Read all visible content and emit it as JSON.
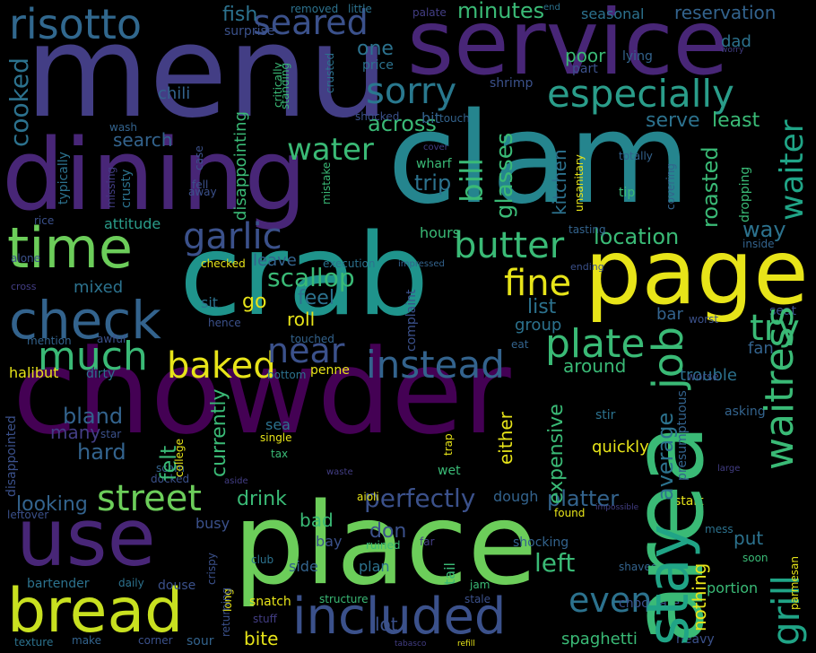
{
  "palette": {
    "background": "#000000",
    "yellow": "#e7e419",
    "lime": "#a2da37",
    "green": "#6ccd5a",
    "teal_green": "#3aba76",
    "sea": "#20a486",
    "teal": "#1f948c",
    "blue_teal": "#29788e",
    "steel": "#33638d",
    "slate": "#3b518b",
    "indigo": "#433e85",
    "violet": "#482677",
    "purple": "#440154"
  },
  "words": [
    "chowder",
    "clam",
    "menu",
    "service",
    "crab",
    "dining",
    "place",
    "area",
    "page",
    "use",
    "time",
    "bread",
    "included",
    "check",
    "especially",
    "risotto",
    "stay",
    "waitress",
    "grill",
    "job",
    "water",
    "seared",
    "sorry",
    "street",
    "plate",
    "waiter",
    "butter",
    "instead",
    "much",
    "baked",
    "garlic",
    "fine",
    "near",
    "even",
    "perfectly",
    "try",
    "fish",
    "cooked",
    "bland",
    "left",
    "minutes",
    "bill",
    "glasses",
    "scallop",
    "kitchen",
    "roasted",
    "location",
    "hours",
    "trip",
    "way",
    "serve",
    "least",
    "across",
    "seasonal",
    "reservation",
    "chili",
    "search",
    "attitude",
    "mixed",
    "list",
    "feel",
    "roll",
    "bar",
    "group",
    "drink",
    "don",
    "platter",
    "dough",
    "around",
    "trouble",
    "average",
    "expensive",
    "fan",
    "currently",
    "felt",
    "looking",
    "hard",
    "many",
    "bad",
    "bay",
    "side",
    "plan",
    "quickly",
    "either",
    "nothing",
    "portion",
    "spaghetti",
    "lot",
    "bite",
    "put",
    "go",
    "sit",
    "leave",
    "poor",
    "dad",
    "one",
    "price",
    "shrimp",
    "part",
    "lying",
    "standing",
    "crusted",
    "surprise",
    "removed",
    "little",
    "palate",
    "end",
    "worry",
    "critically",
    "disappointing",
    "typically",
    "missing",
    "crusty",
    "mistake",
    "case",
    "fell",
    "away",
    "wash",
    "rice",
    "alone",
    "cross",
    "mention",
    "awful",
    "touched",
    "halibut",
    "dirty",
    "execution",
    "checked",
    "hence",
    "complaint",
    "impressed",
    "ending",
    "tasting",
    "inside",
    "seat",
    "worst",
    "worse",
    "asking",
    "stir",
    "presumptuous",
    "unsanitary",
    "cover",
    "totally",
    "tip",
    "covering",
    "dropping",
    "wharf",
    "shocked",
    "touch",
    "bit",
    "penne",
    "bottom",
    "eat",
    "sea",
    "single",
    "tax",
    "star",
    "college",
    "scam",
    "docked",
    "aside",
    "waste",
    "wet",
    "trap",
    "tail",
    "large",
    "start",
    "mess",
    "soon",
    "shocking",
    "found",
    "impossible",
    "aioli",
    "ruined",
    "far",
    "busy",
    "crispy",
    "long",
    "club",
    "leftover",
    "disappointed",
    "bartender",
    "daily",
    "douse",
    "returning",
    "snatch",
    "stuff",
    "structure",
    "jam",
    "stale",
    "shaved",
    "chocolate",
    "parmesan",
    "heavy",
    "refill",
    "tabasco",
    "sour",
    "corner",
    "make",
    "texture"
  ]
}
